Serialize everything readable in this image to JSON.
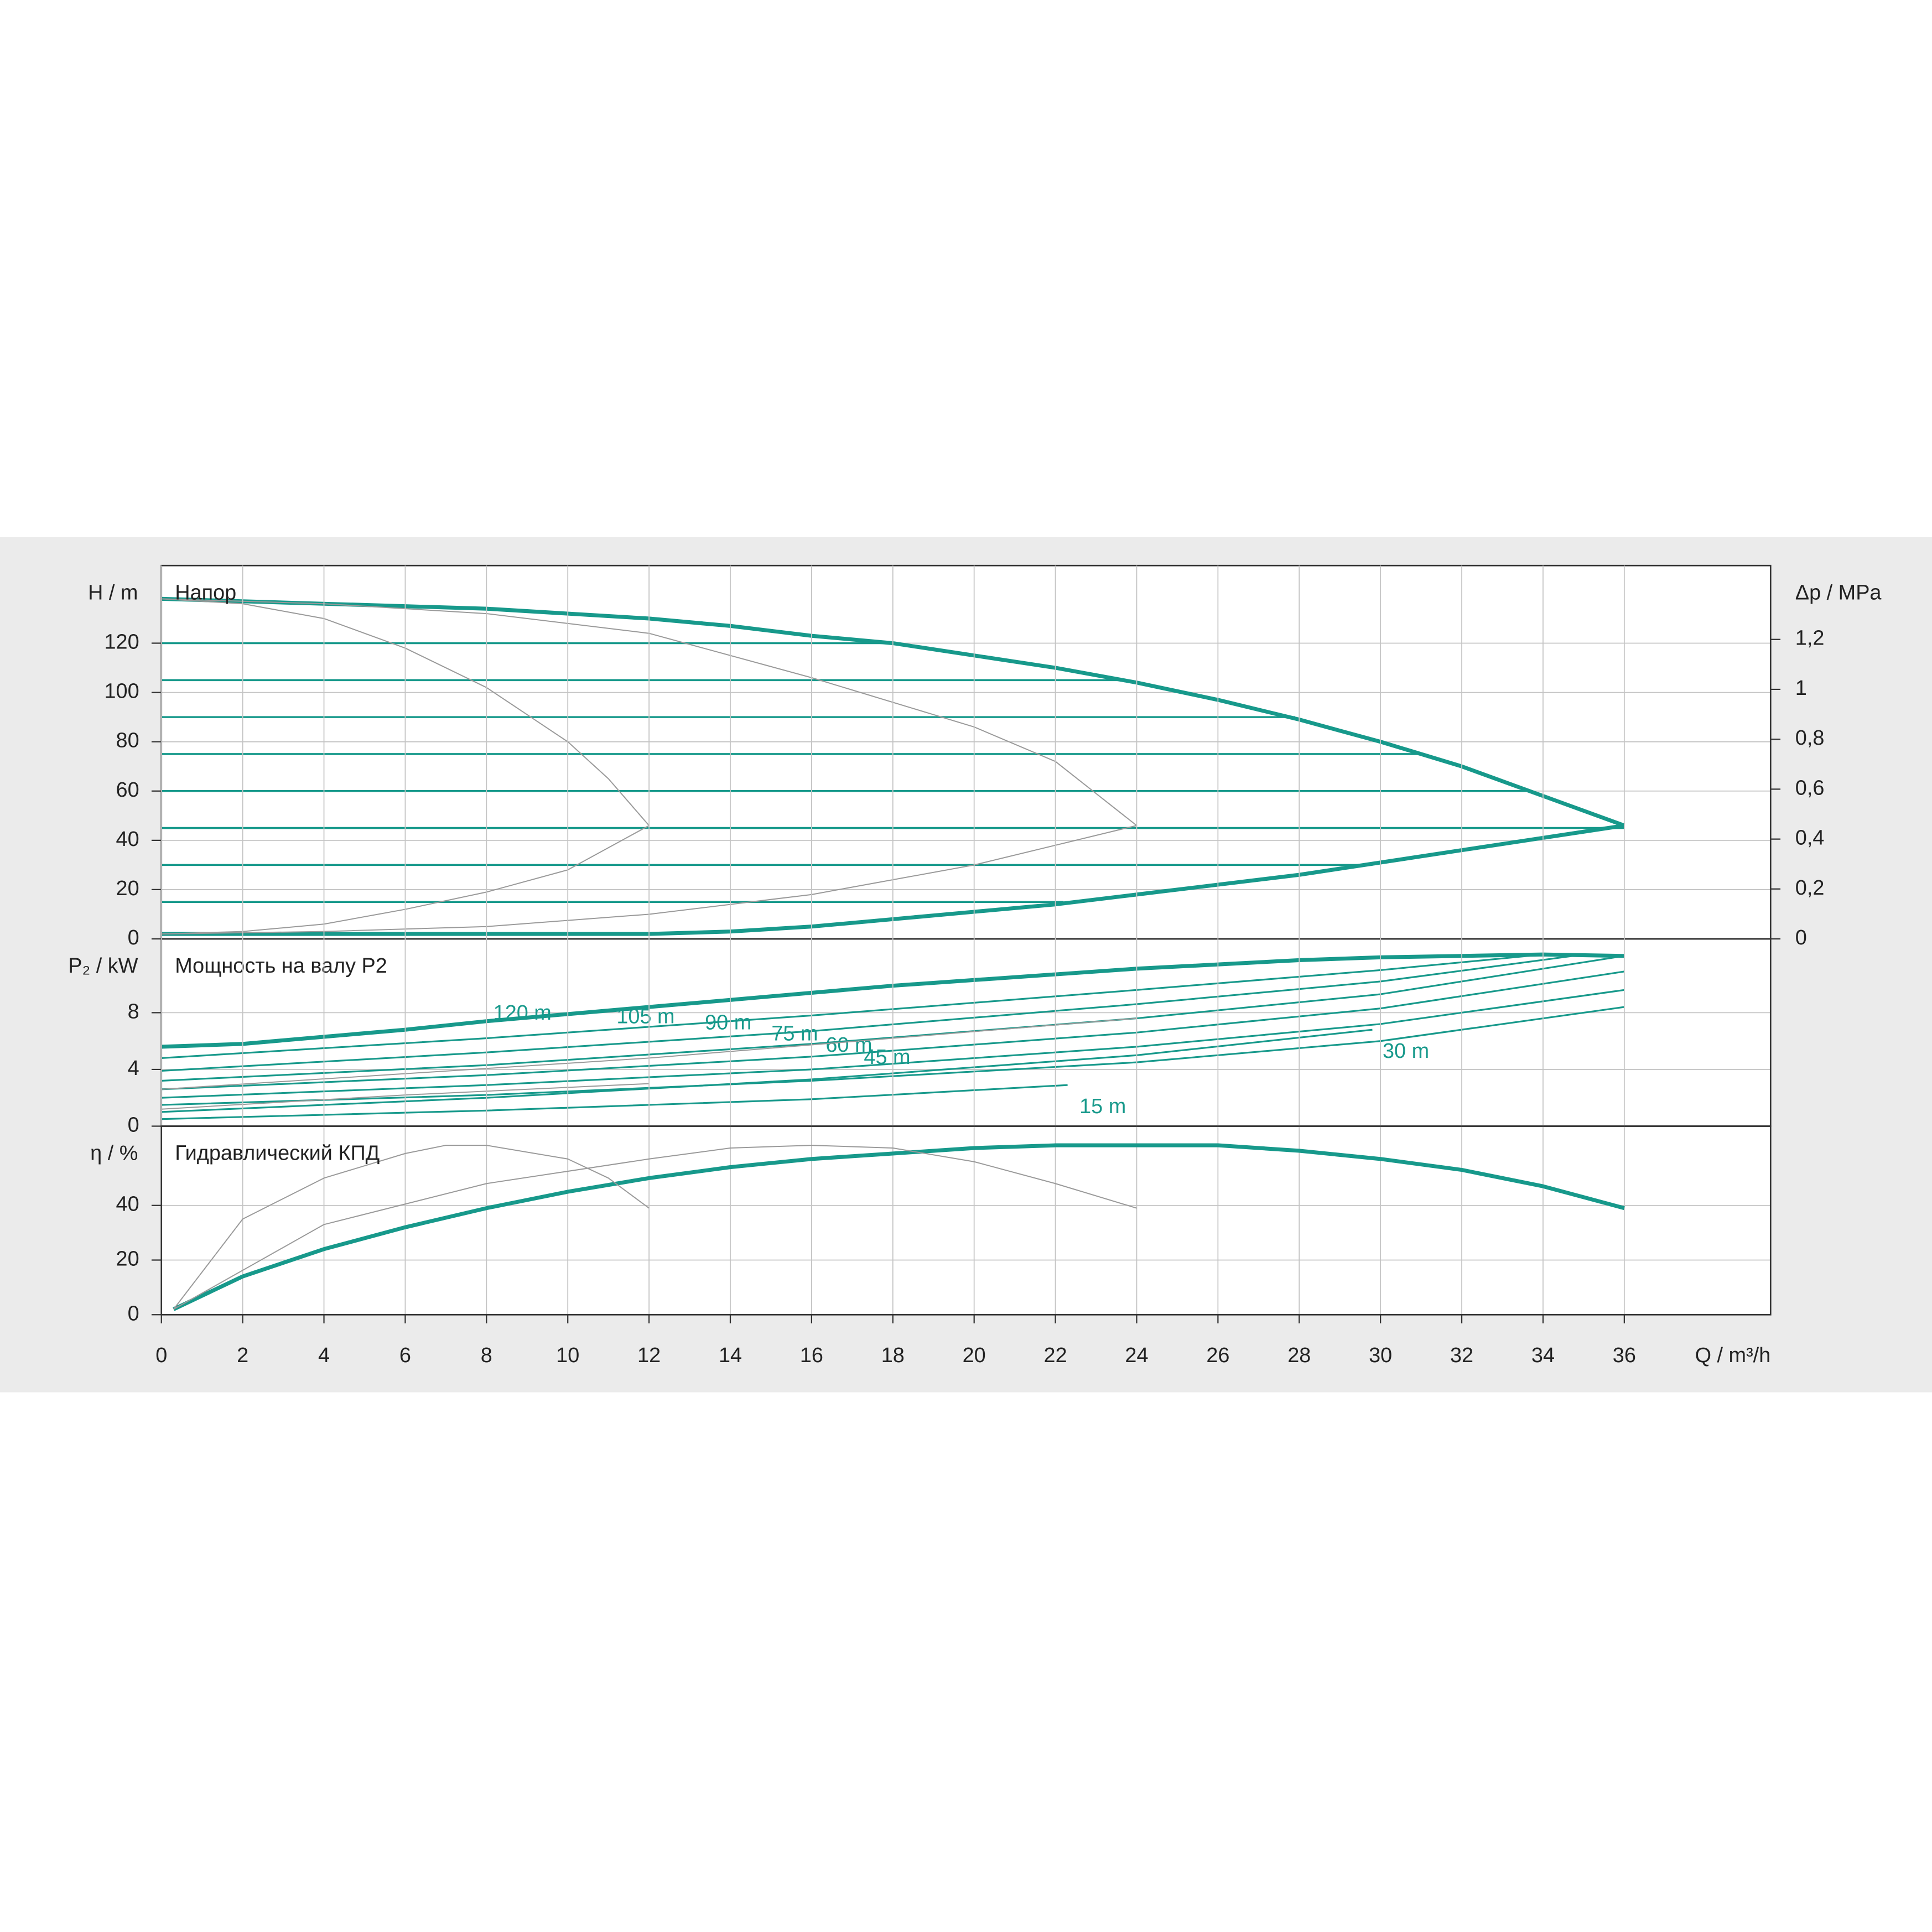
{
  "chart_data": [
    {
      "type": "line",
      "title": "Напор",
      "ylabel": "H / m",
      "y2label": "Δp / MPa",
      "xlim": [
        0,
        39.6
      ],
      "ylim": [
        0,
        151.5
      ],
      "yticks": [
        0,
        20,
        40,
        60,
        80,
        100,
        120
      ],
      "y2lim": [
        0,
        1.496
      ],
      "y2ticks": [
        0,
        {
          "value": 0.2,
          "label": "0,2"
        },
        {
          "value": 0.4,
          "label": "0,4"
        },
        {
          "value": 0.6,
          "label": "0,6"
        },
        {
          "value": 0.8,
          "label": "0,8"
        },
        1,
        {
          "value": 1.2,
          "label": "1,2"
        }
      ],
      "grid": true,
      "series": [
        {
          "color": "#17998b",
          "line_width": 3.2,
          "x": [
            0,
            2,
            4,
            6,
            8,
            10,
            12,
            14,
            16,
            18,
            20,
            22,
            24,
            26,
            28,
            30,
            32,
            34,
            36
          ],
          "values": [
            138,
            137,
            136,
            135,
            134,
            132,
            130,
            127,
            123,
            120,
            115,
            110,
            104,
            97,
            89,
            80,
            70,
            58,
            46
          ]
        },
        {
          "color": "#17998b",
          "line_width": 3.2,
          "x": [
            0,
            2,
            4,
            6,
            8,
            10,
            12,
            14,
            16,
            18,
            20,
            22,
            24,
            26,
            28,
            30,
            32,
            34,
            36
          ],
          "values": [
            2,
            2,
            2,
            2,
            2,
            2,
            2,
            3,
            5,
            8,
            11,
            14,
            18,
            22,
            26,
            31,
            36,
            41,
            46
          ]
        },
        {
          "color": "#17998b",
          "line_width": 1.6,
          "x": [
            0,
            18
          ],
          "values": [
            120,
            120
          ]
        },
        {
          "color": "#17998b",
          "line_width": 1.6,
          "x": [
            0,
            23.7
          ],
          "values": [
            105,
            105
          ]
        },
        {
          "color": "#17998b",
          "line_width": 1.6,
          "x": [
            0,
            27.9
          ],
          "values": [
            90,
            90
          ]
        },
        {
          "color": "#17998b",
          "line_width": 1.6,
          "x": [
            0,
            31
          ],
          "values": [
            75,
            75
          ]
        },
        {
          "color": "#17998b",
          "line_width": 1.6,
          "x": [
            0,
            33.6
          ],
          "values": [
            60,
            60
          ]
        },
        {
          "color": "#17998b",
          "line_width": 1.6,
          "x": [
            0,
            36
          ],
          "values": [
            45,
            45
          ]
        },
        {
          "color": "#17998b",
          "line_width": 1.6,
          "x": [
            0,
            29.8
          ],
          "values": [
            30,
            30
          ]
        },
        {
          "color": "#17998b",
          "line_width": 1.6,
          "x": [
            0,
            22.2
          ],
          "values": [
            15,
            15
          ]
        },
        {
          "color": "#9a9a9a",
          "line_width": 0.9,
          "x": [
            0,
            2,
            4,
            6,
            8,
            10,
            11,
            12,
            10,
            8,
            6,
            4,
            2,
            0
          ],
          "values": [
            138,
            136,
            130,
            118,
            102,
            80,
            65,
            46,
            28,
            19,
            12,
            6,
            3,
            2
          ]
        },
        {
          "color": "#9a9a9a",
          "line_width": 0.9,
          "x": [
            0,
            4,
            8,
            12,
            16,
            20,
            22,
            24,
            20,
            16,
            12,
            8,
            4,
            0
          ],
          "values": [
            138,
            136,
            132,
            124,
            106,
            86,
            72,
            46,
            30,
            18,
            10,
            5,
            3,
            2
          ]
        }
      ]
    },
    {
      "type": "line",
      "title": "Мощность на валу P2",
      "ylabel": "P₂ / kW",
      "xlim": [
        0,
        39.6
      ],
      "ylim": [
        0,
        13.2
      ],
      "yticks": [
        0,
        4,
        8
      ],
      "grid": true,
      "series": [
        {
          "color": "#17998b",
          "line_width": 3.2,
          "x": [
            0,
            2,
            4,
            6,
            8,
            10,
            12,
            14,
            16,
            18,
            20,
            22,
            24,
            26,
            28,
            30,
            32,
            34,
            36
          ],
          "values": [
            5.6,
            5.8,
            6.3,
            6.8,
            7.4,
            7.9,
            8.4,
            8.9,
            9.4,
            9.9,
            10.3,
            10.7,
            11.1,
            11.4,
            11.7,
            11.9,
            12.0,
            12.1,
            12.0
          ]
        },
        {
          "name": "120 m",
          "color": "#17998b",
          "line_width": 1.4,
          "x": [
            0,
            8,
            16,
            24,
            30,
            34
          ],
          "values": [
            4.8,
            6.2,
            7.8,
            9.6,
            11.0,
            12.1
          ]
        },
        {
          "name": "105 m",
          "color": "#17998b",
          "line_width": 1.4,
          "x": [
            0,
            8,
            16,
            24,
            30,
            35
          ],
          "values": [
            3.9,
            5.2,
            6.7,
            8.6,
            10.2,
            12.1
          ]
        },
        {
          "name": "90 m",
          "color": "#17998b",
          "line_width": 1.4,
          "x": [
            0,
            8,
            16,
            24,
            30,
            36
          ],
          "values": [
            3.2,
            4.3,
            5.8,
            7.6,
            9.3,
            12.0
          ]
        },
        {
          "name": "75 m",
          "color": "#17998b",
          "line_width": 1.4,
          "x": [
            0,
            8,
            16,
            24,
            30,
            36
          ],
          "values": [
            2.6,
            3.6,
            4.9,
            6.6,
            8.3,
            10.9
          ]
        },
        {
          "name": "60 m",
          "color": "#17998b",
          "line_width": 1.4,
          "x": [
            0,
            8,
            16,
            24,
            30,
            36
          ],
          "values": [
            2.0,
            2.9,
            4.0,
            5.6,
            7.2,
            9.6
          ]
        },
        {
          "name": "45 m",
          "color": "#17998b",
          "line_width": 1.4,
          "x": [
            0,
            8,
            16,
            24,
            30,
            36
          ],
          "values": [
            1.5,
            2.2,
            3.2,
            4.5,
            6.0,
            8.4
          ]
        },
        {
          "name": "30 m",
          "color": "#17998b",
          "line_width": 1.4,
          "x": [
            0,
            8,
            16,
            24,
            29.8
          ],
          "values": [
            1.0,
            2.0,
            3.3,
            5.0,
            6.8
          ]
        },
        {
          "name": "15 m",
          "color": "#17998b",
          "line_width": 1.4,
          "x": [
            0,
            8,
            16,
            22.3
          ],
          "values": [
            0.5,
            1.1,
            1.9,
            2.9
          ]
        },
        {
          "color": "#9a9a9a",
          "line_width": 0.9,
          "x": [
            0,
            6,
            12
          ],
          "values": [
            1.2,
            2.2,
            3.0
          ]
        },
        {
          "color": "#9a9a9a",
          "line_width": 0.9,
          "x": [
            0,
            12,
            24
          ],
          "values": [
            2.6,
            4.8,
            7.6
          ]
        }
      ]
    },
    {
      "type": "line",
      "title": "Гидравлический КПД",
      "ylabel": "η / %",
      "xlabel": "Q / m³/h",
      "xlim": [
        0,
        39.6
      ],
      "ylim": [
        0,
        69
      ],
      "yticks": [
        0,
        20,
        40
      ],
      "xticks": [
        0,
        2,
        4,
        6,
        8,
        10,
        12,
        14,
        16,
        18,
        20,
        22,
        24,
        26,
        28,
        30,
        32,
        34,
        36
      ],
      "grid": true,
      "series": [
        {
          "color": "#17998b",
          "line_width": 3.2,
          "x": [
            0.3,
            2,
            4,
            6,
            8,
            10,
            12,
            14,
            16,
            18,
            20,
            22,
            24,
            26,
            28,
            30,
            32,
            34,
            36
          ],
          "values": [
            2,
            14,
            24,
            32,
            39,
            45,
            50,
            54,
            57,
            59,
            61,
            62,
            62,
            62,
            60,
            57,
            53,
            47,
            39
          ]
        },
        {
          "color": "#9a9a9a",
          "line_width": 0.9,
          "x": [
            0.3,
            2,
            4,
            6,
            7,
            8,
            10,
            11,
            12
          ],
          "values": [
            2,
            35,
            50,
            59,
            62,
            62,
            57,
            50,
            39
          ]
        },
        {
          "color": "#9a9a9a",
          "line_width": 0.9,
          "x": [
            0.3,
            4,
            8,
            12,
            14,
            16,
            18,
            20,
            22,
            24
          ],
          "values": [
            2,
            33,
            48,
            57,
            61,
            62,
            61,
            56,
            48,
            39
          ]
        }
      ]
    }
  ]
}
